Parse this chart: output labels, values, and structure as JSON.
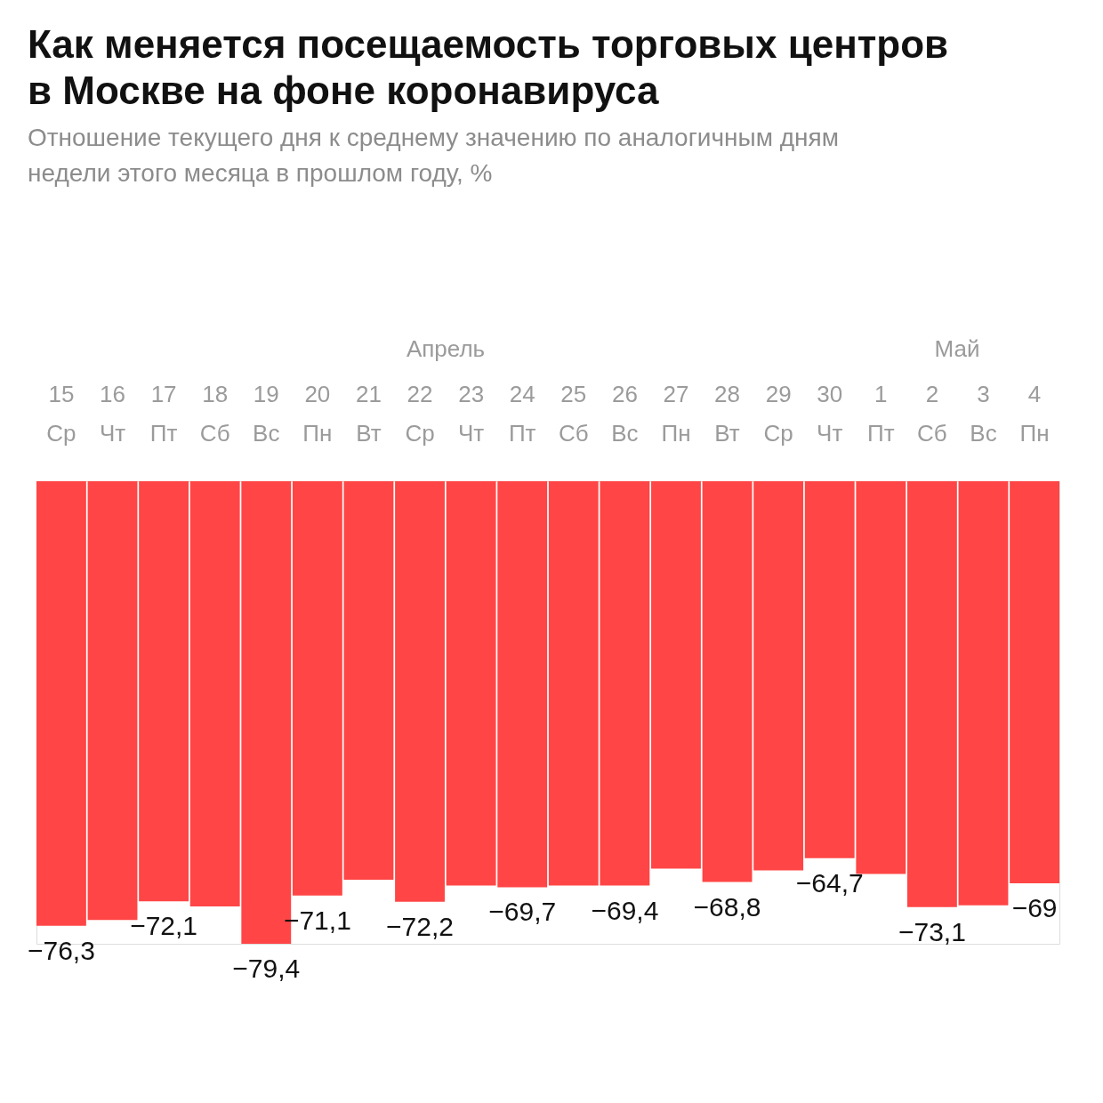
{
  "chart_data": {
    "type": "bar",
    "title": "Как меняется посещаемость торговых центров в Москве на фоне коронавируса",
    "subtitle": "Отношение текущего дня к среднему значению по аналогичным дням недели этого месяца в прошлом году, %",
    "categories": [
      "15 Ср",
      "16 Чт",
      "17 Пт",
      "18 Сб",
      "19 Вс",
      "20 Пн",
      "21 Вт",
      "22 Ср",
      "23 Чт",
      "24 Пт",
      "25 Сб",
      "26 Вс",
      "27 Пн",
      "28 Вт",
      "29 Ср",
      "30 Чт",
      "1 Пт",
      "2 Сб",
      "3 Вс",
      "4 Пн"
    ],
    "values": [
      -76.3,
      -75.3,
      -72.1,
      -73.0,
      -79.4,
      -71.1,
      -68.4,
      -72.2,
      -69.4,
      -69.7,
      -69.4,
      -69.4,
      -66.5,
      -68.8,
      -66.8,
      -64.7,
      -67.4,
      -73.1,
      -72.8,
      -69
    ],
    "value_labels": [
      "−76,3",
      null,
      "−72,1",
      null,
      "−79,4",
      "−71,1",
      null,
      "−72,2",
      null,
      "−69,7",
      null,
      "−69,4",
      null,
      "−68,8",
      null,
      "−64,7",
      null,
      "−73,1",
      null,
      "−69"
    ],
    "color": "#ff4545",
    "annotations": [
      "Апрель",
      "Май"
    ],
    "tick_labels": "x"
  }
}
